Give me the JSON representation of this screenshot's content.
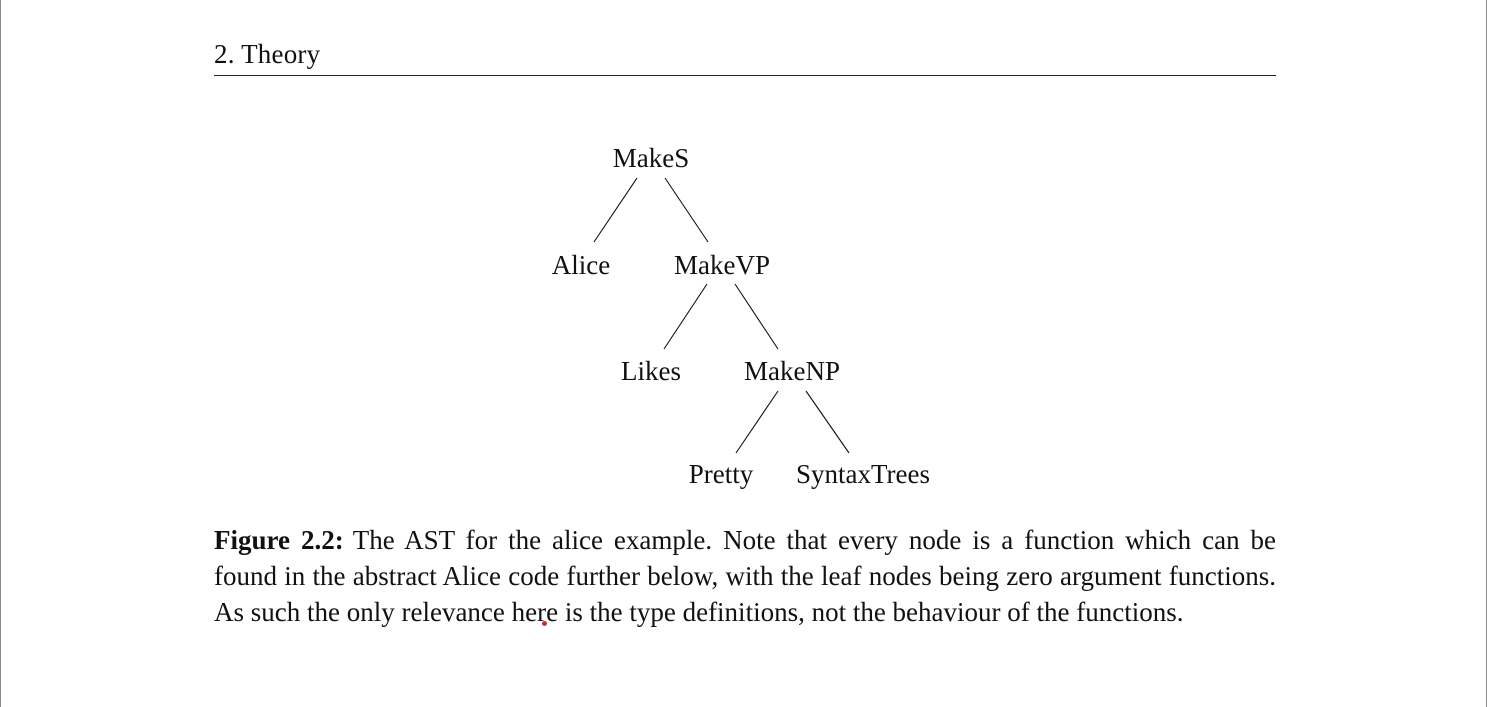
{
  "header": {
    "section": "2. Theory"
  },
  "tree": {
    "nodes": {
      "makes": "MakeS",
      "alice": "Alice",
      "makevp": "MakeVP",
      "likes": "Likes",
      "makenp": "MakeNP",
      "pretty": "Pretty",
      "syntaxtrees": "SyntaxTrees"
    }
  },
  "caption": {
    "label": "Figure 2.2:",
    "text": "The AST for the alice example. Note that every node is a function which can be found in the abstract Alice code further below, with the leaf nodes being zero argument functions. As such the only relevance here is the type definitions, not the behaviour of the functions."
  },
  "colors": {
    "annotation_dot": "#d62b2b"
  }
}
